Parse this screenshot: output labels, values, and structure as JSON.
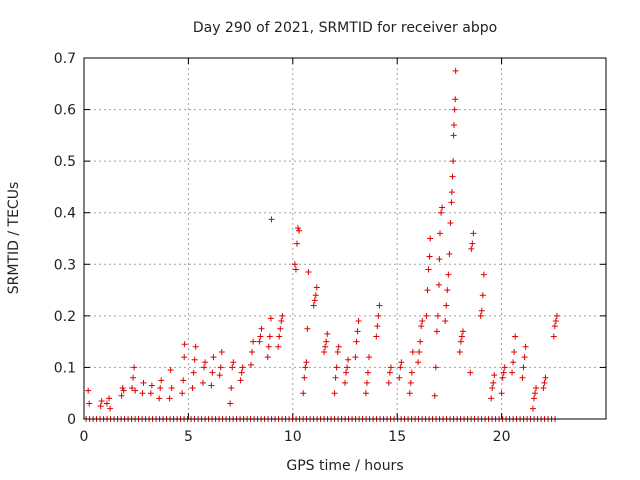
{
  "chart_data": {
    "type": "scatter",
    "title": "Day 290 of 2021, SRMTID for receiver abpo",
    "xlabel": "GPS time / hours",
    "ylabel": "SRMTID / TECUs",
    "xlim": [
      0,
      25
    ],
    "ylim": [
      0,
      0.7
    ],
    "xticks": [
      0,
      5,
      10,
      15,
      20
    ],
    "yticks": [
      0,
      0.1,
      0.2,
      0.3,
      0.4,
      0.5,
      0.6,
      0.7
    ],
    "xtick_labels": [
      "0",
      "5",
      "10",
      "15",
      "20"
    ],
    "ytick_labels": [
      "0",
      "0.1",
      "0.2",
      "0.3",
      "0.4",
      "0.5",
      "0.6",
      "0.7"
    ],
    "grid": true,
    "marker": "+",
    "color": "#dd0000",
    "baseline_zero_range": [
      0.1,
      22.6
    ],
    "series": [
      {
        "name": "SRMTID",
        "points": [
          [
            0.2,
            0.055
          ],
          [
            0.25,
            0.03
          ],
          [
            0.8,
            0.025
          ],
          [
            0.85,
            0.035
          ],
          [
            1.1,
            0.03
          ],
          [
            1.2,
            0.04
          ],
          [
            1.25,
            0.02
          ],
          [
            1.8,
            0.045
          ],
          [
            1.85,
            0.06
          ],
          [
            1.9,
            0.055
          ],
          [
            2.3,
            0.06
          ],
          [
            2.35,
            0.08
          ],
          [
            2.4,
            0.1
          ],
          [
            2.45,
            0.055
          ],
          [
            2.8,
            0.05
          ],
          [
            2.85,
            0.07
          ],
          [
            3.2,
            0.05
          ],
          [
            3.25,
            0.065
          ],
          [
            3.6,
            0.04
          ],
          [
            3.65,
            0.06
          ],
          [
            3.7,
            0.075
          ],
          [
            4.1,
            0.04
          ],
          [
            4.15,
            0.095
          ],
          [
            4.2,
            0.06
          ],
          [
            4.7,
            0.05
          ],
          [
            4.75,
            0.075
          ],
          [
            4.8,
            0.12
          ],
          [
            4.82,
            0.145
          ],
          [
            5.2,
            0.06
          ],
          [
            5.25,
            0.09
          ],
          [
            5.3,
            0.115
          ],
          [
            5.35,
            0.14
          ],
          [
            5.7,
            0.07
          ],
          [
            5.75,
            0.1
          ],
          [
            5.8,
            0.11
          ],
          [
            6.1,
            0.065
          ],
          [
            6.15,
            0.09
          ],
          [
            6.2,
            0.12
          ],
          [
            6.5,
            0.085
          ],
          [
            6.55,
            0.1
          ],
          [
            6.6,
            0.13
          ],
          [
            7.0,
            0.03
          ],
          [
            7.05,
            0.06
          ],
          [
            7.1,
            0.1
          ],
          [
            7.15,
            0.11
          ],
          [
            7.5,
            0.075
          ],
          [
            7.55,
            0.09
          ],
          [
            7.6,
            0.1
          ],
          [
            8.0,
            0.105
          ],
          [
            8.05,
            0.13
          ],
          [
            8.1,
            0.15
          ],
          [
            8.4,
            0.15
          ],
          [
            8.45,
            0.16
          ],
          [
            8.5,
            0.175
          ],
          [
            8.8,
            0.12
          ],
          [
            8.85,
            0.14
          ],
          [
            8.9,
            0.16
          ],
          [
            8.95,
            0.195
          ],
          [
            8.98,
            0.387
          ],
          [
            9.3,
            0.14
          ],
          [
            9.35,
            0.16
          ],
          [
            9.4,
            0.175
          ],
          [
            9.45,
            0.19
          ],
          [
            9.5,
            0.2
          ],
          [
            10.1,
            0.3
          ],
          [
            10.15,
            0.29
          ],
          [
            10.2,
            0.34
          ],
          [
            10.25,
            0.37
          ],
          [
            10.3,
            0.365
          ],
          [
            10.5,
            0.05
          ],
          [
            10.55,
            0.08
          ],
          [
            10.6,
            0.1
          ],
          [
            10.65,
            0.11
          ],
          [
            10.7,
            0.175
          ],
          [
            10.75,
            0.285
          ],
          [
            11.0,
            0.22
          ],
          [
            11.05,
            0.23
          ],
          [
            11.1,
            0.24
          ],
          [
            11.15,
            0.255
          ],
          [
            11.5,
            0.13
          ],
          [
            11.55,
            0.14
          ],
          [
            11.6,
            0.15
          ],
          [
            11.65,
            0.165
          ],
          [
            12.0,
            0.05
          ],
          [
            12.05,
            0.08
          ],
          [
            12.1,
            0.1
          ],
          [
            12.15,
            0.13
          ],
          [
            12.2,
            0.14
          ],
          [
            12.5,
            0.07
          ],
          [
            12.55,
            0.09
          ],
          [
            12.6,
            0.1
          ],
          [
            12.65,
            0.115
          ],
          [
            13.0,
            0.12
          ],
          [
            13.05,
            0.15
          ],
          [
            13.1,
            0.17
          ],
          [
            13.15,
            0.19
          ],
          [
            13.5,
            0.05
          ],
          [
            13.55,
            0.07
          ],
          [
            13.6,
            0.09
          ],
          [
            13.65,
            0.12
          ],
          [
            14.0,
            0.16
          ],
          [
            14.05,
            0.18
          ],
          [
            14.1,
            0.2
          ],
          [
            14.15,
            0.22
          ],
          [
            14.6,
            0.07
          ],
          [
            14.65,
            0.09
          ],
          [
            14.7,
            0.1
          ],
          [
            15.1,
            0.08
          ],
          [
            15.15,
            0.1
          ],
          [
            15.2,
            0.11
          ],
          [
            15.6,
            0.05
          ],
          [
            15.65,
            0.07
          ],
          [
            15.7,
            0.09
          ],
          [
            15.75,
            0.13
          ],
          [
            16.0,
            0.11
          ],
          [
            16.05,
            0.13
          ],
          [
            16.1,
            0.15
          ],
          [
            16.15,
            0.18
          ],
          [
            16.2,
            0.19
          ],
          [
            16.4,
            0.2
          ],
          [
            16.45,
            0.25
          ],
          [
            16.5,
            0.29
          ],
          [
            16.55,
            0.315
          ],
          [
            16.58,
            0.35
          ],
          [
            16.8,
            0.045
          ],
          [
            16.85,
            0.1
          ],
          [
            16.9,
            0.17
          ],
          [
            16.95,
            0.2
          ],
          [
            17.0,
            0.26
          ],
          [
            17.02,
            0.31
          ],
          [
            17.05,
            0.36
          ],
          [
            17.1,
            0.4
          ],
          [
            17.15,
            0.41
          ],
          [
            17.3,
            0.19
          ],
          [
            17.35,
            0.22
          ],
          [
            17.4,
            0.25
          ],
          [
            17.45,
            0.28
          ],
          [
            17.5,
            0.32
          ],
          [
            17.55,
            0.38
          ],
          [
            17.6,
            0.42
          ],
          [
            17.62,
            0.44
          ],
          [
            17.65,
            0.47
          ],
          [
            17.68,
            0.5
          ],
          [
            17.7,
            0.55
          ],
          [
            17.72,
            0.57
          ],
          [
            17.75,
            0.6
          ],
          [
            17.78,
            0.62
          ],
          [
            17.8,
            0.675
          ],
          [
            18.0,
            0.13
          ],
          [
            18.05,
            0.15
          ],
          [
            18.1,
            0.16
          ],
          [
            18.15,
            0.17
          ],
          [
            18.5,
            0.09
          ],
          [
            18.55,
            0.33
          ],
          [
            18.6,
            0.34
          ],
          [
            18.65,
            0.36
          ],
          [
            19.0,
            0.2
          ],
          [
            19.05,
            0.21
          ],
          [
            19.1,
            0.24
          ],
          [
            19.15,
            0.28
          ],
          [
            19.5,
            0.04
          ],
          [
            19.55,
            0.06
          ],
          [
            19.6,
            0.07
          ],
          [
            19.65,
            0.085
          ],
          [
            20.0,
            0.05
          ],
          [
            20.05,
            0.08
          ],
          [
            20.1,
            0.09
          ],
          [
            20.15,
            0.1
          ],
          [
            20.5,
            0.09
          ],
          [
            20.55,
            0.11
          ],
          [
            20.6,
            0.13
          ],
          [
            20.65,
            0.16
          ],
          [
            21.0,
            0.08
          ],
          [
            21.05,
            0.1
          ],
          [
            21.1,
            0.12
          ],
          [
            21.15,
            0.14
          ],
          [
            21.5,
            0.02
          ],
          [
            21.55,
            0.04
          ],
          [
            21.6,
            0.05
          ],
          [
            21.65,
            0.06
          ],
          [
            22.0,
            0.06
          ],
          [
            22.05,
            0.07
          ],
          [
            22.1,
            0.08
          ],
          [
            22.5,
            0.16
          ],
          [
            22.55,
            0.18
          ],
          [
            22.6,
            0.19
          ],
          [
            22.65,
            0.2
          ]
        ]
      }
    ]
  }
}
